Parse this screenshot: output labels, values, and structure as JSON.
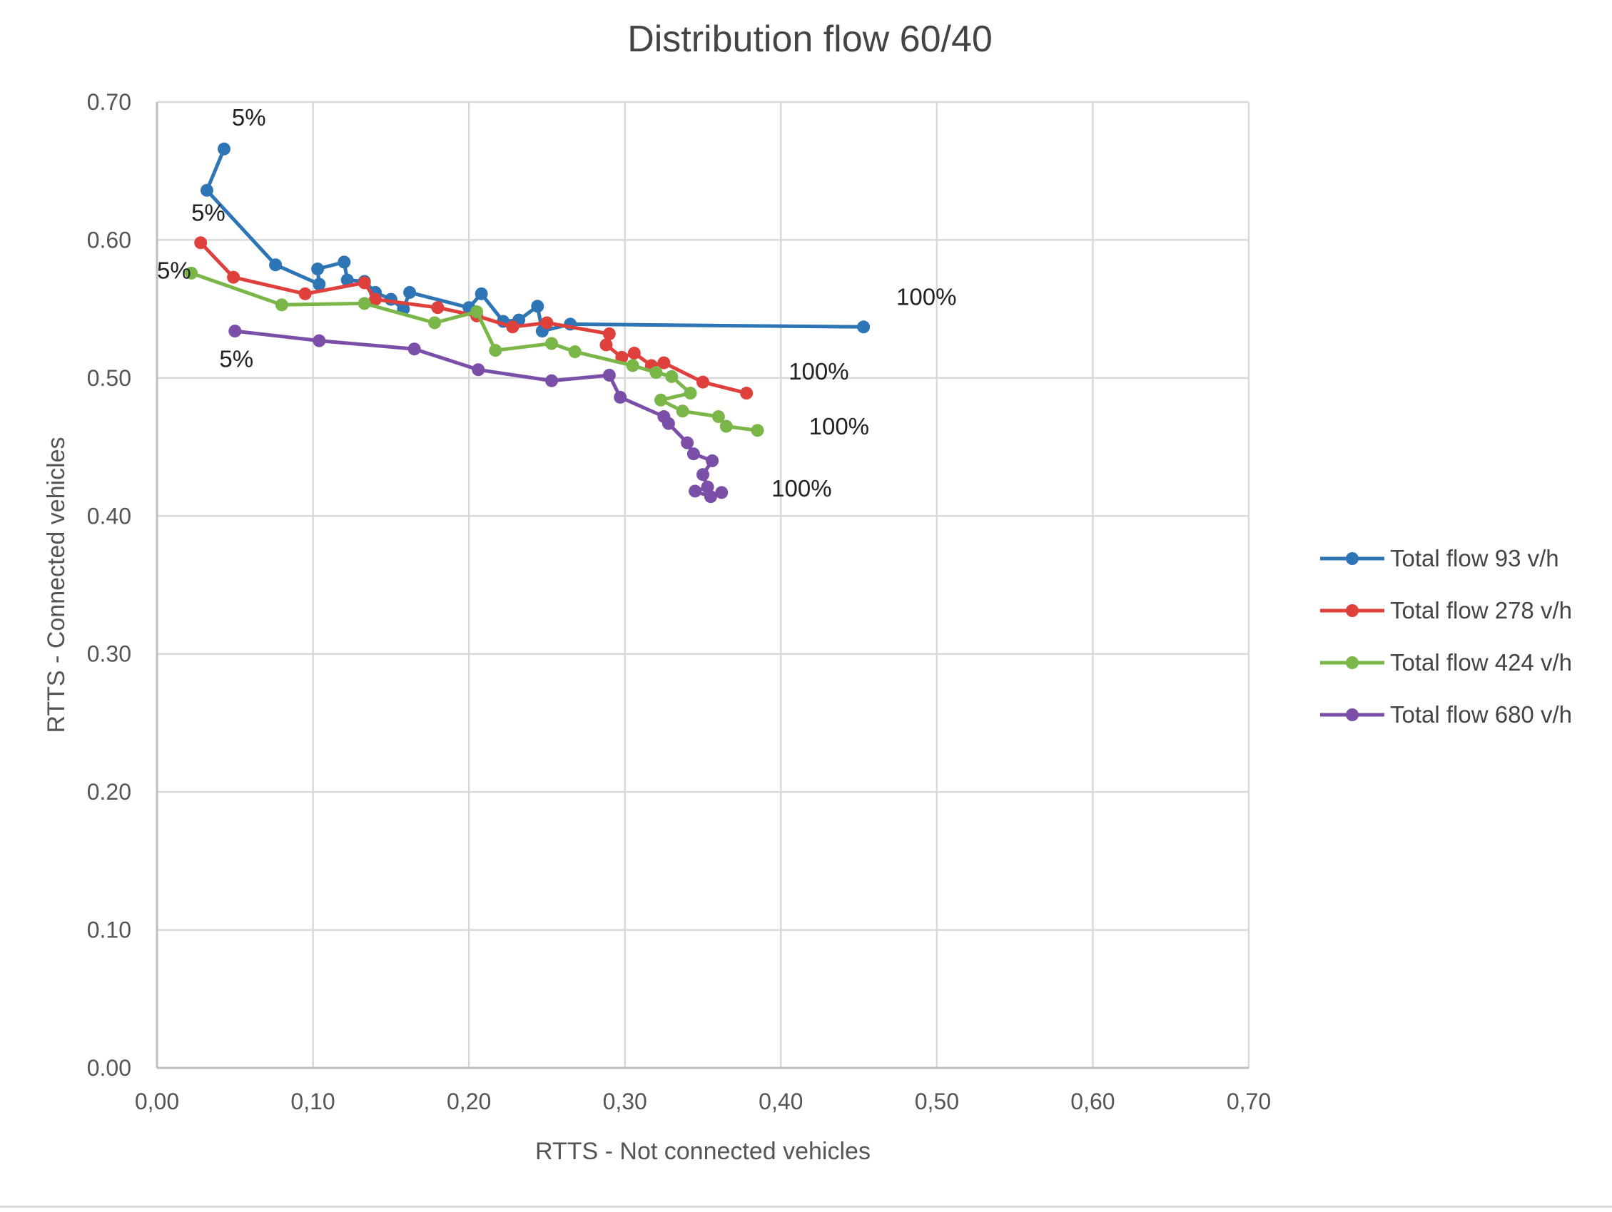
{
  "chart_data": {
    "type": "scatter",
    "title": "Distribution flow 60/40",
    "xlabel": "RTTS - Not connected vehicles",
    "ylabel": "RTTS - Connected vehicles",
    "xlim": [
      0,
      0.7
    ],
    "ylim": [
      0,
      0.7
    ],
    "x_ticks": [
      "0,00",
      "0,10",
      "0,20",
      "0,30",
      "0,40",
      "0,50",
      "0,60",
      "0,70"
    ],
    "y_ticks": [
      "0.00",
      "0.10",
      "0.20",
      "0.30",
      "0.40",
      "0.50",
      "0.60",
      "0.70"
    ],
    "grid": true,
    "legend_position": "right",
    "series": [
      {
        "name": "Total flow 93 v/h",
        "color": "#2e75b6",
        "points": [
          [
            0.043,
            0.666
          ],
          [
            0.032,
            0.636
          ],
          [
            0.076,
            0.582
          ],
          [
            0.104,
            0.568
          ],
          [
            0.103,
            0.579
          ],
          [
            0.12,
            0.584
          ],
          [
            0.122,
            0.571
          ],
          [
            0.133,
            0.57
          ],
          [
            0.14,
            0.562
          ],
          [
            0.15,
            0.557
          ],
          [
            0.158,
            0.55
          ],
          [
            0.162,
            0.562
          ],
          [
            0.2,
            0.551
          ],
          [
            0.208,
            0.561
          ],
          [
            0.222,
            0.541
          ],
          [
            0.232,
            0.542
          ],
          [
            0.244,
            0.552
          ],
          [
            0.247,
            0.534
          ],
          [
            0.265,
            0.539
          ],
          [
            0.453,
            0.537
          ]
        ]
      },
      {
        "name": "Total flow 278 v/h",
        "color": "#e0403c",
        "points": [
          [
            0.028,
            0.598
          ],
          [
            0.049,
            0.573
          ],
          [
            0.095,
            0.561
          ],
          [
            0.133,
            0.569
          ],
          [
            0.14,
            0.557
          ],
          [
            0.18,
            0.551
          ],
          [
            0.205,
            0.545
          ],
          [
            0.228,
            0.537
          ],
          [
            0.25,
            0.54
          ],
          [
            0.29,
            0.532
          ],
          [
            0.288,
            0.524
          ],
          [
            0.298,
            0.515
          ],
          [
            0.306,
            0.518
          ],
          [
            0.317,
            0.509
          ],
          [
            0.325,
            0.511
          ],
          [
            0.35,
            0.497
          ],
          [
            0.378,
            0.489
          ]
        ]
      },
      {
        "name": "Total flow 424 v/h",
        "color": "#7ab648",
        "points": [
          [
            0.022,
            0.576
          ],
          [
            0.08,
            0.553
          ],
          [
            0.133,
            0.554
          ],
          [
            0.178,
            0.54
          ],
          [
            0.205,
            0.548
          ],
          [
            0.217,
            0.52
          ],
          [
            0.253,
            0.525
          ],
          [
            0.268,
            0.519
          ],
          [
            0.305,
            0.509
          ],
          [
            0.32,
            0.504
          ],
          [
            0.33,
            0.501
          ],
          [
            0.342,
            0.489
          ],
          [
            0.323,
            0.484
          ],
          [
            0.337,
            0.476
          ],
          [
            0.36,
            0.472
          ],
          [
            0.365,
            0.465
          ],
          [
            0.385,
            0.462
          ]
        ]
      },
      {
        "name": "Total flow 680 v/h",
        "color": "#7b4fa8",
        "points": [
          [
            0.05,
            0.534
          ],
          [
            0.104,
            0.527
          ],
          [
            0.165,
            0.521
          ],
          [
            0.206,
            0.506
          ],
          [
            0.253,
            0.498
          ],
          [
            0.29,
            0.502
          ],
          [
            0.297,
            0.486
          ],
          [
            0.325,
            0.472
          ],
          [
            0.328,
            0.467
          ],
          [
            0.34,
            0.453
          ],
          [
            0.344,
            0.445
          ],
          [
            0.356,
            0.44
          ],
          [
            0.35,
            0.43
          ],
          [
            0.353,
            0.421
          ],
          [
            0.345,
            0.418
          ],
          [
            0.355,
            0.414
          ],
          [
            0.362,
            0.417
          ]
        ]
      }
    ],
    "annotations": [
      {
        "text": "5%",
        "x": 0.048,
        "y": 0.683
      },
      {
        "text": "5%",
        "x": 0.022,
        "y": 0.614
      },
      {
        "text": "5%",
        "x": 0.0,
        "y": 0.572
      },
      {
        "text": "5%",
        "x": 0.04,
        "y": 0.508
      },
      {
        "text": "100%",
        "x": 0.474,
        "y": 0.553
      },
      {
        "text": "100%",
        "x": 0.405,
        "y": 0.499
      },
      {
        "text": "100%",
        "x": 0.418,
        "y": 0.459
      },
      {
        "text": "100%",
        "x": 0.394,
        "y": 0.414
      }
    ]
  }
}
